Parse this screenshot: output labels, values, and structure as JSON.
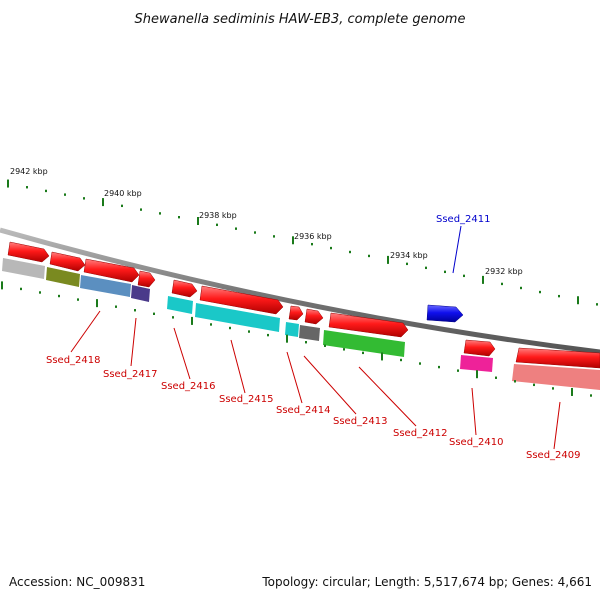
{
  "title": "Shewanella sediminis HAW-EB3, complete genome",
  "footer": {
    "accession": "Accession: NC_009831",
    "topology": "Topology: circular; Length: 5,517,674 bp; Genes: 4,661"
  },
  "kbp_labels": [
    "2942 kbp",
    "2940 kbp",
    "2938 kbp",
    "2936 kbp",
    "2934 kbp",
    "2932 kbp"
  ],
  "gene_labels": [
    {
      "name": "Ssed_2418",
      "color": "#cc0000"
    },
    {
      "name": "Ssed_2417",
      "color": "#cc0000"
    },
    {
      "name": "Ssed_2416",
      "color": "#cc0000"
    },
    {
      "name": "Ssed_2415",
      "color": "#cc0000"
    },
    {
      "name": "Ssed_2414",
      "color": "#cc0000"
    },
    {
      "name": "Ssed_2413",
      "color": "#cc0000"
    },
    {
      "name": "Ssed_2412",
      "color": "#cc0000"
    },
    {
      "name": "Ssed_2411",
      "color": "#0000cc"
    },
    {
      "name": "Ssed_2410",
      "color": "#cc0000"
    },
    {
      "name": "Ssed_2409",
      "color": "#cc0000"
    }
  ],
  "colors": {
    "gene": "#ee1111",
    "reverse_gene": "#2222dd",
    "backbone": "#808080",
    "ticks": "#1a7a1a",
    "cog_grey": "#b0b0b0",
    "cog_olive": "#7a8a20",
    "cog_steel": "#5b8fc0",
    "cog_purple": "#4a3a8a",
    "cog_cyan": "#1ac8c8",
    "cog_darkgrey": "#666666",
    "cog_green": "#33bb33",
    "cog_magenta": "#ee2299",
    "cog_salmon": "#ee8080"
  }
}
